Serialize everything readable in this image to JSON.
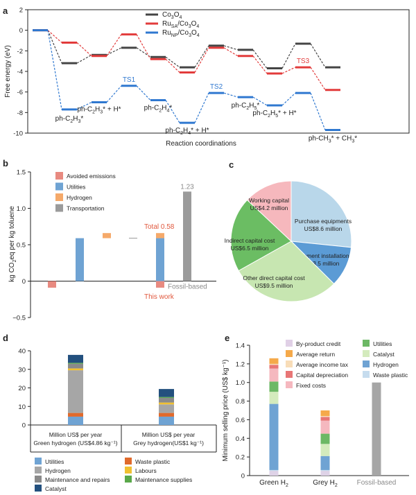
{
  "chart_data": [
    {
      "panel": "a",
      "type": "line",
      "title": "",
      "xlabel": "Reaction coordinations",
      "ylabel": "Free energy (eV)",
      "ylim": [
        -10,
        2
      ],
      "yticks": [
        2,
        0,
        -2,
        -4,
        -6,
        -8,
        -10
      ],
      "legend_position": "top-right",
      "series": [
        {
          "name": "Co3O4",
          "legend_main": "Co",
          "legend_sub1": "3",
          "legend_mid": "O",
          "legend_sub2": "4",
          "legend_end": "",
          "color": "#444444",
          "line_style": "dashed",
          "values": [
            0,
            -3.2,
            -2.4,
            -1.7,
            -2.6,
            -3.6,
            -1.5,
            -1.9,
            -3.7,
            -1.3,
            -3.6
          ]
        },
        {
          "name": "RuSA/Co3O4",
          "legend_main": "Ru",
          "legend_sub1": "SA",
          "legend_mid": "/Co",
          "legend_sub2": "3",
          "legend_end": "O4",
          "color": "#e23b3b",
          "line_style": "dashed",
          "values": [
            0,
            -1.2,
            -2.5,
            -0.4,
            -2.8,
            -4.1,
            -1.7,
            -2.5,
            -4.2,
            -3.6,
            -5.8
          ]
        },
        {
          "name": "RuNP/Co3O4",
          "legend_main": "Ru",
          "legend_sub1": "NP",
          "legend_mid": "/Co",
          "legend_sub2": "3",
          "legend_end": "O4",
          "color": "#2f78d0",
          "line_style": "dashed",
          "values": [
            0,
            -7.7,
            -7.0,
            -5.4,
            -6.8,
            -9.0,
            -6.1,
            -6.5,
            -7.3,
            -6.1,
            -9.7
          ]
        }
      ],
      "state_labels": [
        {
          "index": 1,
          "text": "ph-C2H3*"
        },
        {
          "index": 2,
          "text": "ph-C2H3* + H*"
        },
        {
          "index": 4,
          "text": "ph-C2H4*"
        },
        {
          "index": 5,
          "text": "ph-C2H4* + H*"
        },
        {
          "index": 7,
          "text": "ph-C2H5*"
        },
        {
          "index": 8,
          "text": "ph-C2H5* + H*"
        },
        {
          "index": 10,
          "text": "ph-CH3* + CH3*"
        }
      ],
      "ts_labels": [
        {
          "index": 3,
          "text": "TS1",
          "color": "#2f78d0"
        },
        {
          "index": 6,
          "text": "TS2",
          "color": "#2f78d0"
        },
        {
          "index": 9,
          "text": "TS3",
          "color": "#e23b3b"
        }
      ]
    },
    {
      "panel": "b",
      "type": "bar",
      "ylabel": "kg CO2eq per kg toluene",
      "ylim": [
        -0.5,
        1.5
      ],
      "yticks": [
        1.5,
        1.0,
        0.5,
        0,
        -0.5
      ],
      "ytick_labels": [
        "1.5",
        "1.0",
        "0.5",
        "0",
        "−0.5"
      ],
      "legend": [
        {
          "name": "Avoided emissions",
          "color": "#e88a80"
        },
        {
          "name": "Utilities",
          "color": "#6fa3d3"
        },
        {
          "name": "Hydrogen",
          "color": "#f5a96a"
        },
        {
          "name": "Transportation",
          "color": "#9b9b9b"
        }
      ],
      "bars": [
        {
          "slot": 0,
          "base": 0,
          "value": -0.09,
          "color": "#e88a80"
        },
        {
          "slot": 1,
          "base": 0,
          "value": 0.59,
          "color": "#6fa3d3"
        },
        {
          "slot": 2,
          "base": 0.59,
          "value": 0.07,
          "color": "#f5a96a"
        },
        {
          "slot": 3,
          "base": 0.59,
          "value": 0.005,
          "color": "#9b9b9b"
        },
        {
          "slot": 4,
          "base": 0,
          "value": -0.09,
          "color": "#e88a80"
        },
        {
          "slot": 4,
          "base": 0,
          "value": 0.59,
          "color": "#6fa3d3"
        },
        {
          "slot": 4,
          "base": 0.59,
          "value": 0.07,
          "color": "#f5a96a"
        },
        {
          "slot": 5,
          "base": 0,
          "value": 1.23,
          "color": "#9b9b9b"
        }
      ],
      "annotations": {
        "total": "Total 0.58",
        "this_work": "This work",
        "fossil": "Fossil-based",
        "fossil_value": "1.23",
        "highlight_color": "#e0563b",
        "grey_color": "#8a8a8a"
      }
    },
    {
      "panel": "c",
      "type": "pie",
      "slices": [
        {
          "label": "Purchase equipments",
          "value_text": "US$8.6 million",
          "value": 8.6,
          "color": "#b9d7ea"
        },
        {
          "label": "Equipment installation",
          "value_text": "US$3.5 million",
          "value": 3.5,
          "color": "#5b9bd5"
        },
        {
          "label": "Other direct capital cost",
          "value_text": "US$9.5 million",
          "value": 9.5,
          "color": "#c7e6b1"
        },
        {
          "label": "Indirect capital cost",
          "value_text": "US$6.5 million",
          "value": 6.5,
          "color": "#6bbd63"
        },
        {
          "label": "Working capital",
          "value_text": "US$4.2 million",
          "value": 4.2,
          "color": "#f6b8bd"
        }
      ]
    },
    {
      "panel": "d",
      "type": "bar",
      "ylim": [
        0,
        40
      ],
      "yticks": [
        0,
        10,
        20,
        30,
        40
      ],
      "categories": [
        {
          "line1": "Million US$ per year",
          "line2": "Green hydrogen (US$4.86 kg⁻¹)"
        },
        {
          "line1": "Million US$ per year",
          "line2": "Grey hydrogen(US$1 kg⁻¹)"
        }
      ],
      "series": [
        {
          "name": "Utilities",
          "color": "#6fa3d3",
          "values": [
            4.5,
            4.5
          ]
        },
        {
          "name": "Waste plastic",
          "color": "#e06a2c",
          "values": [
            2.0,
            2.0
          ]
        },
        {
          "name": "Hydrogen",
          "color": "#a6a6a6",
          "values": [
            23.0,
            4.6
          ]
        },
        {
          "name": "Labours",
          "color": "#f0c030",
          "values": [
            1.0,
            1.0
          ]
        },
        {
          "name": "Maintenance and repairs",
          "color": "#8a8a8a",
          "values": [
            2.5,
            2.5
          ]
        },
        {
          "name": "Maintenance supplies",
          "color": "#5aa84a",
          "values": [
            0.5,
            0.5
          ]
        },
        {
          "name": "Catalyst",
          "color": "#23507e",
          "values": [
            4.3,
            4.3
          ]
        }
      ],
      "legend_order": [
        "Utilities",
        "Waste plastic",
        "Hydrogen",
        "Labours",
        "Maintenance and repairs",
        "Maintenance supplies",
        "Catalyst"
      ]
    },
    {
      "panel": "e",
      "type": "bar",
      "ylabel": "Minimum selling price (US$ kg⁻¹)",
      "ylim": [
        0,
        1.4
      ],
      "yticks": [
        0,
        0.2,
        0.4,
        0.6,
        0.8,
        1.0,
        1.2,
        1.4
      ],
      "ytick_labels": [
        "0",
        "0.2",
        "0.4",
        "0.6",
        "0.8",
        "1.0",
        "1.2",
        "1.4"
      ],
      "categories": [
        "Green H2",
        "Grey H2",
        "Fossil-based"
      ],
      "category_display": [
        {
          "main": "Green H",
          "sub": "2"
        },
        {
          "main": "Grey H",
          "sub": "2"
        },
        {
          "main": "Fossil-based",
          "sub": ""
        }
      ],
      "series": [
        {
          "name": "Waste plastic",
          "color": "#c6dcee",
          "values": [
            0.06,
            0.06,
            0
          ]
        },
        {
          "name": "Hydrogen",
          "color": "#6fa3d3",
          "values": [
            0.71,
            0.15,
            0
          ]
        },
        {
          "name": "Catalyst",
          "color": "#d4ebbd",
          "values": [
            0.13,
            0.13,
            0
          ]
        },
        {
          "name": "Utilities",
          "color": "#6cb865",
          "values": [
            0.11,
            0.11,
            0
          ]
        },
        {
          "name": "Fixed costs",
          "color": "#f5b8bf",
          "values": [
            0.14,
            0.14,
            0
          ]
        },
        {
          "name": "Capital depreciation",
          "color": "#e87676",
          "values": [
            0.04,
            0.04,
            0
          ]
        },
        {
          "name": "Average income tax",
          "color": "#f8ddb8",
          "values": [
            0.01,
            0.01,
            0
          ]
        },
        {
          "name": "Average return",
          "color": "#f5a94a",
          "values": [
            0.06,
            0.06,
            0
          ]
        },
        {
          "name": "By-product credit",
          "color": "#e0d0e6",
          "values": [
            -0.05,
            -0.05,
            0
          ]
        },
        {
          "name": "Fossil-based",
          "color": "#a6a6a6",
          "values": [
            0,
            0,
            1.0
          ]
        }
      ],
      "legend_left": [
        "By-product credit",
        "Average return",
        "Average income tax",
        "Capital depreciation",
        "Fixed costs"
      ],
      "legend_right": [
        "Utilities",
        "Catalyst",
        "Hydrogen",
        "Waste plastic"
      ],
      "fossil_label_color": "#8a8a8a"
    }
  ]
}
